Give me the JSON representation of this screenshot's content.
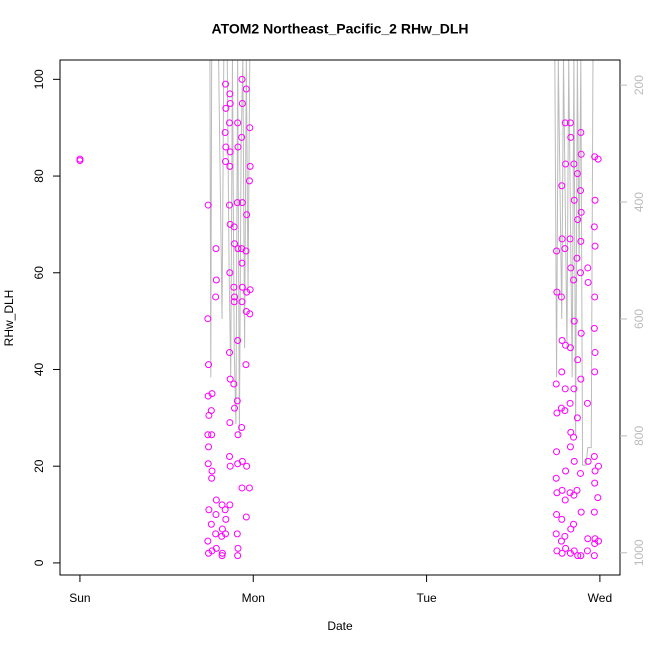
{
  "chart_data": {
    "type": "scatter",
    "title": "ATOM2 Northeast_Pacific_2 RHw_DLH",
    "xlabel": "Date",
    "ylabel": "RHw_DLH",
    "xlim": [
      -0.115,
      3.116
    ],
    "xticks": [
      {
        "value": 0,
        "label": "Sun"
      },
      {
        "value": 1,
        "label": "Mon"
      },
      {
        "value": 2,
        "label": "Tue"
      },
      {
        "value": 3,
        "label": "Wed"
      }
    ],
    "ylim": [
      -2.5,
      104
    ],
    "yticks": [
      0,
      20,
      40,
      60,
      80,
      100
    ],
    "y2lim": [
      1038,
      157
    ],
    "y2ticks": [
      200,
      400,
      600,
      800,
      1000
    ],
    "y2tick_color": "#bbbbbb",
    "series": [
      {
        "type": "scatter",
        "color": "#ff00ff",
        "x": [
          0,
          0,
          0.74,
          0.738,
          0.742,
          0.74,
          0.744,
          0.738,
          0.742,
          0.74,
          0.744,
          0.738,
          0.742,
          0.76,
          0.762,
          0.758,
          0.762,
          0.76,
          0.758,
          0.762,
          0.785,
          0.787,
          0.783,
          0.787,
          0.785,
          0.783,
          0.787,
          0.82,
          0.822,
          0.818,
          0.822,
          0.82,
          0.84,
          0.842,
          0.838,
          0.842,
          0.84,
          0.838,
          0.842,
          0.84,
          0.865,
          0.867,
          0.863,
          0.867,
          0.865,
          0.863,
          0.867,
          0.865,
          0.863,
          0.867,
          0.865,
          0.863,
          0.867,
          0.865,
          0.89,
          0.892,
          0.888,
          0.892,
          0.89,
          0.888,
          0.892,
          0.91,
          0.912,
          0.908,
          0.912,
          0.91,
          0.908,
          0.912,
          0.91,
          0.908,
          0.912,
          0.91,
          0.935,
          0.937,
          0.933,
          0.937,
          0.935,
          0.933,
          0.937,
          0.935,
          0.933,
          0.937,
          0.935,
          0.96,
          0.962,
          0.958,
          0.962,
          0.96,
          0.958,
          0.962,
          0.96,
          0.98,
          0.982,
          0.978,
          0.982,
          0.98,
          0.978,
          2.75,
          2.752,
          2.748,
          2.752,
          2.75,
          2.748,
          2.752,
          2.75,
          2.748,
          2.752,
          2.78,
          2.782,
          2.778,
          2.782,
          2.78,
          2.778,
          2.782,
          2.78,
          2.778,
          2.782,
          2.8,
          2.802,
          2.798,
          2.802,
          2.8,
          2.798,
          2.802,
          2.8,
          2.798,
          2.802,
          2.83,
          2.832,
          2.828,
          2.832,
          2.83,
          2.828,
          2.832,
          2.83,
          2.828,
          2.832,
          2.83,
          2.85,
          2.852,
          2.848,
          2.852,
          2.85,
          2.848,
          2.852,
          2.85,
          2.848,
          2.852,
          2.87,
          2.872,
          2.868,
          2.872,
          2.87,
          2.868,
          2.872,
          2.89,
          2.892,
          2.888,
          2.892,
          2.89,
          2.888,
          2.892,
          2.89,
          2.888,
          2.892,
          2.89,
          2.93,
          2.932,
          2.928,
          2.932,
          2.93,
          2.928,
          2.97,
          2.972,
          2.968,
          2.972,
          2.97,
          2.968,
          2.972,
          2.97,
          2.968,
          2.972,
          2.97,
          2.968,
          2.972,
          2.97,
          2.968,
          2.99,
          2.992,
          2.988,
          2.992
        ],
        "values": [
          83.5,
          83.2,
          74,
          50.5,
          41,
          34.5,
          30.5,
          26.5,
          24,
          20.5,
          11,
          4.5,
          2,
          26.5,
          35,
          31.5,
          19,
          17.5,
          8,
          2.5,
          65,
          58.5,
          55,
          13,
          10,
          6,
          3,
          12,
          7,
          5.5,
          2,
          1.5,
          83,
          86,
          89,
          94,
          99,
          11,
          9,
          6,
          97,
          95,
          91,
          85,
          82,
          74,
          70,
          60,
          43.5,
          38,
          29,
          22,
          20,
          12,
          69.5,
          66,
          57,
          55,
          54,
          37,
          32,
          91,
          86,
          74.5,
          65,
          46,
          33.5,
          26.5,
          20.5,
          6,
          3,
          1.5,
          100,
          95,
          88,
          74.5,
          62,
          65,
          57,
          54,
          28,
          21,
          15.5,
          98,
          72,
          64.5,
          56,
          52,
          41,
          20,
          9.5,
          90,
          82,
          79,
          56.5,
          51.5,
          15.5,
          64.5,
          56,
          37,
          31,
          23,
          17.5,
          14.5,
          10,
          6,
          2.5,
          78,
          67,
          55,
          46,
          39.5,
          32,
          15,
          9,
          4.5,
          2,
          91,
          82.5,
          65,
          45,
          36,
          31.5,
          19,
          13,
          5.5,
          3,
          91,
          88,
          67,
          61,
          44.5,
          33,
          27,
          24,
          14.5,
          7,
          2,
          82.5,
          75,
          58.5,
          50,
          36,
          26,
          21,
          14,
          8,
          2.5,
          80.5,
          71,
          63,
          42,
          30,
          15,
          1.5,
          89,
          84.5,
          77,
          72.5,
          66.5,
          60,
          47.5,
          38,
          18.5,
          10.5,
          1.5,
          61,
          58,
          33,
          21,
          5,
          2.5,
          84,
          75,
          69.5,
          65.5,
          55,
          48.5,
          43.5,
          39.5,
          22,
          19,
          16.5,
          10.5,
          5,
          4,
          1.5,
          83.5,
          20,
          13.5,
          4.5
        ]
      },
      {
        "type": "line",
        "axis": "y2",
        "color": "#bbbbbb",
        "x": [
          0.75,
          0.755,
          0.76,
          0.8,
          0.82,
          0.83,
          0.85,
          0.86,
          0.87,
          0.88,
          0.89,
          0.9,
          0.91,
          0.92,
          0.93,
          0.94,
          0.95,
          0.96,
          0.97,
          0.98,
          null,
          2.72,
          2.74,
          2.75,
          2.76,
          2.78,
          2.79,
          2.81,
          2.82,
          2.84,
          2.85,
          2.86,
          2.87,
          2.88,
          2.89,
          2.9,
          2.92,
          2.93,
          2.95,
          2.96,
          2.98
        ],
        "values": [
          155,
          700,
          155,
          155,
          600,
          155,
          155,
          500,
          700,
          155,
          650,
          780,
          155,
          800,
          300,
          155,
          650,
          155,
          550,
          155,
          null,
          155,
          155,
          700,
          155,
          600,
          155,
          650,
          155,
          700,
          155,
          800,
          155,
          500,
          155,
          850,
          850,
          820,
          820,
          155,
          155
        ]
      }
    ]
  }
}
